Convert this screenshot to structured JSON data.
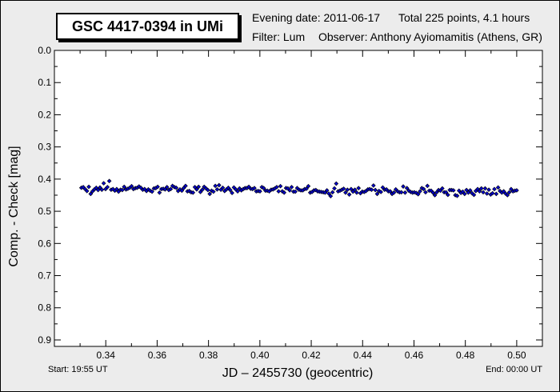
{
  "header": {
    "title": "GSC 4417-0394 in UMi",
    "evening": "Evening date: 2011-06-17",
    "total": "Total 225 points, 4.1 hours",
    "filter": "Filter: Lum",
    "observer": "Observer: Anthony Ayiomamitis (Athens, GR)"
  },
  "footer": {
    "start": "Start: 19:55 UT",
    "end": "End: 00:00 UT"
  },
  "chart_data": {
    "type": "scatter",
    "title": "GSC 4417-0394 in UMi",
    "xlabel": "JD – 2455730  (geocentric)",
    "ylabel": "Comp. - Check [mag]",
    "xlim": [
      0.32,
      0.51
    ],
    "ylim": [
      0.0,
      0.92
    ],
    "y_inverted": true,
    "grid": false,
    "legend": "none",
    "x_ticks": [
      "0.34",
      "0.36",
      "0.38",
      "0.40",
      "0.42",
      "0.44",
      "0.46",
      "0.48",
      "0.50"
    ],
    "y_ticks": [
      "0.0",
      "0.1",
      "0.2",
      "0.3",
      "0.4",
      "0.5",
      "0.6",
      "0.7",
      "0.8",
      "0.9"
    ],
    "marker_color": "#0000cc",
    "marker_edge": "#000000",
    "series": [
      {
        "x_start": 0.3305,
        "x_end": 0.5,
        "count": 225,
        "values": [
          0.427,
          0.425,
          0.431,
          0.437,
          0.424,
          0.446,
          0.438,
          0.432,
          0.427,
          0.434,
          0.426,
          0.433,
          0.413,
          0.431,
          0.425,
          0.406,
          0.433,
          0.431,
          0.436,
          0.431,
          0.439,
          0.433,
          0.434,
          0.424,
          0.432,
          0.43,
          0.427,
          0.422,
          0.431,
          0.428,
          0.427,
          0.423,
          0.427,
          0.433,
          0.431,
          0.437,
          0.432,
          0.436,
          0.439,
          0.429,
          0.428,
          0.424,
          0.442,
          0.431,
          0.43,
          0.432,
          0.425,
          0.434,
          0.431,
          0.421,
          0.425,
          0.427,
          0.437,
          0.432,
          0.436,
          0.428,
          0.421,
          0.438,
          0.437,
          0.441,
          0.442,
          0.425,
          0.432,
          0.424,
          0.44,
          0.433,
          0.424,
          0.429,
          0.434,
          0.446,
          0.436,
          0.439,
          0.421,
          0.432,
          0.419,
          0.433,
          0.427,
          0.437,
          0.432,
          0.427,
          0.434,
          0.443,
          0.426,
          0.432,
          0.438,
          0.429,
          0.435,
          0.431,
          0.428,
          0.428,
          0.424,
          0.43,
          0.431,
          0.428,
          0.438,
          0.437,
          0.438,
          0.425,
          0.428,
          0.436,
          0.436,
          0.438,
          0.433,
          0.432,
          0.429,
          0.425,
          0.438,
          0.422,
          0.438,
          0.442,
          0.428,
          0.429,
          0.435,
          0.425,
          0.439,
          0.439,
          0.428,
          0.433,
          0.435,
          0.435,
          0.431,
          0.43,
          0.422,
          0.442,
          0.44,
          0.435,
          0.434,
          0.438,
          0.439,
          0.44,
          0.441,
          0.442,
          0.435,
          0.445,
          0.453,
          0.441,
          0.429,
          0.414,
          0.438,
          0.436,
          0.433,
          0.43,
          0.442,
          0.433,
          0.448,
          0.431,
          0.439,
          0.433,
          0.442,
          0.428,
          0.444,
          0.439,
          0.44,
          0.437,
          0.432,
          0.431,
          0.433,
          0.42,
          0.434,
          0.446,
          0.437,
          0.44,
          0.426,
          0.433,
          0.432,
          0.438,
          0.438,
          0.446,
          0.442,
          0.432,
          0.438,
          0.441,
          0.441,
          0.423,
          0.442,
          0.428,
          0.436,
          0.44,
          0.442,
          0.441,
          0.443,
          0.447,
          0.438,
          0.428,
          0.431,
          0.441,
          0.421,
          0.436,
          0.436,
          0.442,
          0.45,
          0.441,
          0.434,
          0.436,
          0.429,
          0.441,
          0.441,
          0.449,
          0.434,
          0.434,
          0.435,
          0.45,
          0.452,
          0.436,
          0.443,
          0.439,
          0.446,
          0.434,
          0.442,
          0.435,
          0.444,
          0.449,
          0.437,
          0.431,
          0.438,
          0.429,
          0.441,
          0.429,
          0.445,
          0.433,
          0.448,
          0.444,
          0.431,
          0.446,
          0.426,
          0.437,
          0.442,
          0.438,
          0.445,
          0.45,
          0.441,
          0.431,
          0.438,
          0.436,
          0.435
        ]
      }
    ]
  }
}
